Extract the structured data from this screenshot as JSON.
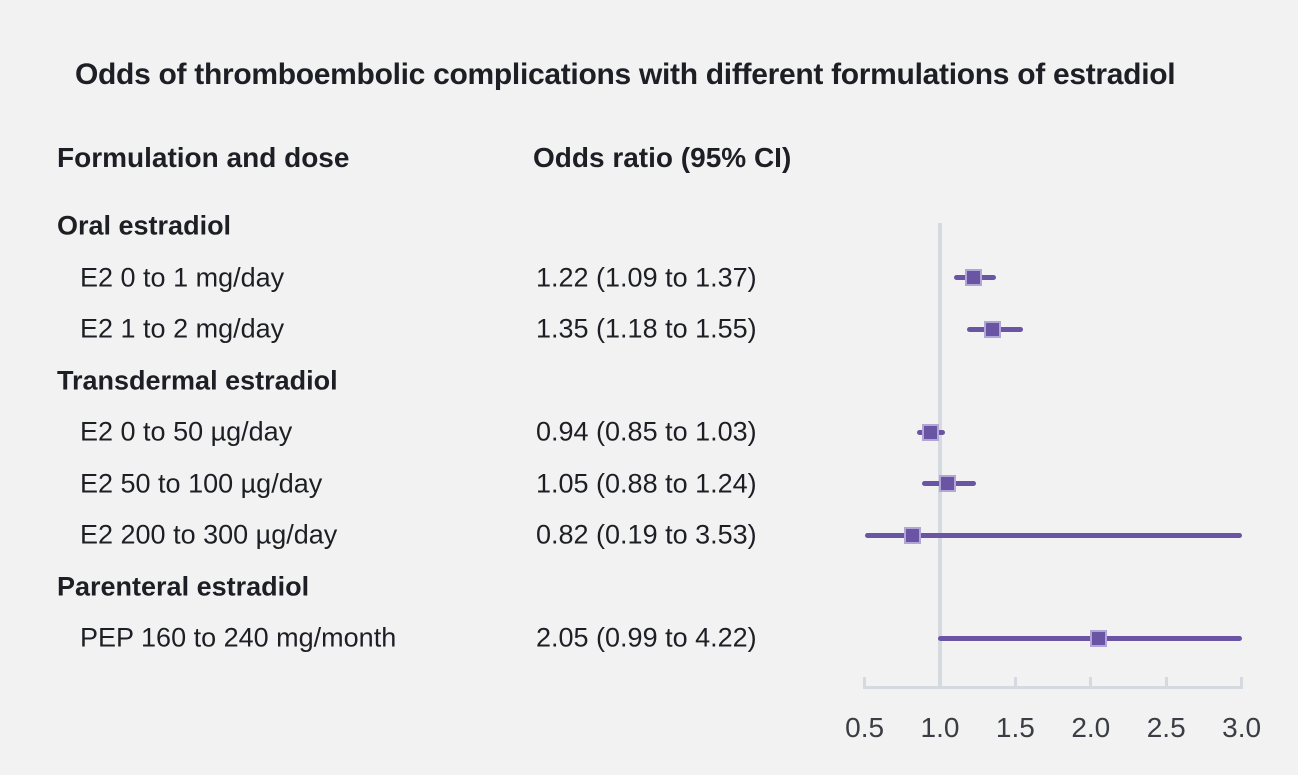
{
  "title": "Odds of thromboembolic complications with different formulations of estradiol",
  "columns": {
    "formulation": "Formulation and dose",
    "odds_ratio": "Odds ratio (95% CI)"
  },
  "colors": {
    "background": "#f2f2f2",
    "text": "#1d1f24",
    "marker_purple": "#6a55a4",
    "marker_border": "#b3a6d6",
    "axis_gray": "#d5d9e0",
    "tick_label": "#3a3d44"
  },
  "chart_data": {
    "type": "forest",
    "title": "Odds of thromboembolic complications with different formulations of estradiol",
    "xlabel": "",
    "ylabel": "",
    "xlim": [
      0.5,
      3.0
    ],
    "reference_line": 1.0,
    "grid": false,
    "axis_ticks": [
      0.5,
      1.0,
      1.5,
      2.0,
      2.5,
      3.0
    ],
    "tick_labels": [
      "0.5",
      "1.0",
      "1.5",
      "2.0",
      "2.5",
      "3.0"
    ],
    "groups": [
      {
        "label": "Oral estradiol",
        "rows": [
          {
            "label": "E2 0 to 1 mg/day",
            "or_text": "1.22 (1.09 to 1.37)",
            "or": 1.22,
            "lo": 1.09,
            "hi": 1.37
          },
          {
            "label": "E2 1 to 2 mg/day",
            "or_text": "1.35 (1.18 to 1.55)",
            "or": 1.35,
            "lo": 1.18,
            "hi": 1.55
          }
        ]
      },
      {
        "label": "Transdermal estradiol",
        "rows": [
          {
            "label": "E2 0 to 50 µg/day",
            "or_text": "0.94 (0.85 to 1.03)",
            "or": 0.94,
            "lo": 0.85,
            "hi": 1.03
          },
          {
            "label": "E2 50 to 100 µg/day",
            "or_text": "1.05 (0.88 to 1.24)",
            "or": 1.05,
            "lo": 0.88,
            "hi": 1.24
          },
          {
            "label": "E2 200 to 300 µg/day",
            "or_text": "0.82 (0.19 to 3.53)",
            "or": 0.82,
            "lo": 0.19,
            "hi": 3.53
          }
        ]
      },
      {
        "label": "Parenteral estradiol",
        "rows": [
          {
            "label": "PEP 160 to 240 mg/month",
            "or_text": "2.05 (0.99 to 4.22)",
            "or": 2.05,
            "lo": 0.99,
            "hi": 4.22
          }
        ]
      }
    ]
  }
}
